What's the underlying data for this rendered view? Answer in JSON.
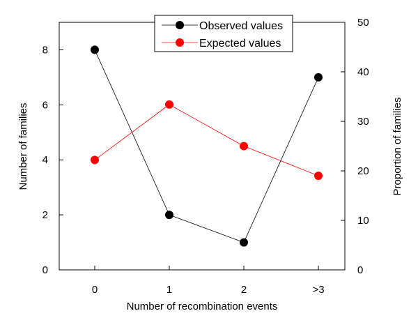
{
  "chart_data": {
    "type": "line",
    "title": "",
    "xlabel": "Number of recombination events",
    "ylabel": "Number of families",
    "y2label": "Proportion of families",
    "categories": [
      "0",
      "1",
      "2",
      ">3"
    ],
    "ylim": [
      0,
      9
    ],
    "y2lim": [
      0,
      50
    ],
    "yticks": [
      "0",
      "2",
      "4",
      "6",
      "8"
    ],
    "y2ticks": [
      "0",
      "10",
      "20",
      "30",
      "40",
      "50"
    ],
    "grid": false,
    "legend_position": "top",
    "series": [
      {
        "name": "Observed values",
        "values": [
          8,
          2,
          1,
          7
        ],
        "color": "#000000",
        "axis": "left"
      },
      {
        "name": "Expected values",
        "values": [
          22.2,
          33.4,
          25.0,
          19.0
        ],
        "color": "#ff0000",
        "axis": "right"
      }
    ]
  }
}
